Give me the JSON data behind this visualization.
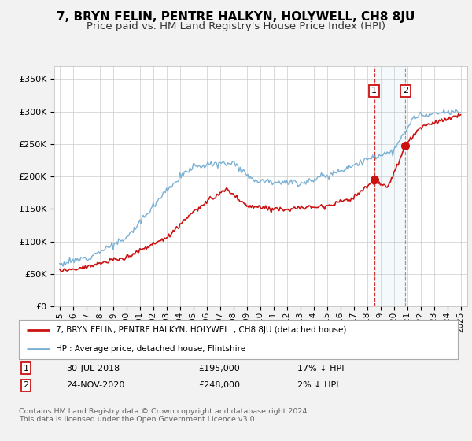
{
  "title": "7, BRYN FELIN, PENTRE HALKYN, HOLYWELL, CH8 8JU",
  "subtitle": "Price paid vs. HM Land Registry's House Price Index (HPI)",
  "title_fontsize": 11,
  "subtitle_fontsize": 9.5,
  "ylim": [
    0,
    370000
  ],
  "yticks": [
    0,
    50000,
    100000,
    150000,
    200000,
    250000,
    300000,
    350000
  ],
  "ytick_labels": [
    "£0",
    "£50K",
    "£100K",
    "£150K",
    "£200K",
    "£250K",
    "£300K",
    "£350K"
  ],
  "background_color": "#f2f2f2",
  "plot_bg_color": "#ffffff",
  "grid_color": "#cccccc",
  "hpi_color": "#7ab0d4",
  "price_color": "#cc1111",
  "legend_line1": "7, BRYN FELIN, PENTRE HALKYN, HOLYWELL, CH8 8JU (detached house)",
  "legend_line2": "HPI: Average price, detached house, Flintshire",
  "table_row1": [
    "1",
    "30-JUL-2018",
    "£195,000",
    "17% ↓ HPI"
  ],
  "table_row2": [
    "2",
    "24-NOV-2020",
    "£248,000",
    "2% ↓ HPI"
  ],
  "footnote": "Contains HM Land Registry data © Crown copyright and database right 2024.\nThis data is licensed under the Open Government Licence v3.0."
}
